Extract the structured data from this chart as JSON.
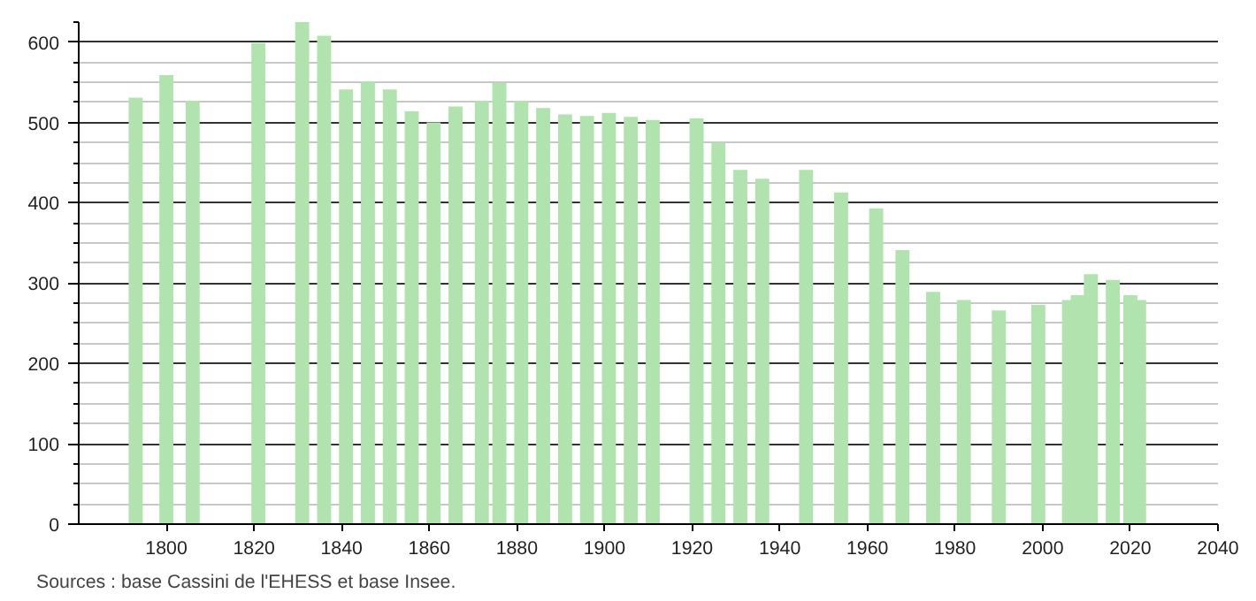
{
  "chart_data": {
    "type": "bar",
    "x": [
      1793,
      1800,
      1806,
      1821,
      1831,
      1836,
      1841,
      1846,
      1851,
      1856,
      1861,
      1866,
      1872,
      1876,
      1881,
      1886,
      1891,
      1896,
      1901,
      1906,
      1911,
      1921,
      1926,
      1931,
      1936,
      1946,
      1954,
      1962,
      1968,
      1975,
      1982,
      1990,
      1999,
      2006,
      2008,
      2011,
      2016,
      2020,
      2022
    ],
    "values": [
      531,
      559,
      527,
      599,
      625,
      608,
      541,
      551,
      541,
      514,
      500,
      520,
      527,
      549,
      527,
      518,
      510,
      508,
      512,
      507,
      503,
      505,
      475,
      441,
      430,
      441,
      413,
      393,
      341,
      289,
      279,
      266,
      273,
      279,
      285,
      311,
      304,
      285,
      279
    ],
    "color": "#b0e3ad",
    "xlim": [
      1780,
      2040
    ],
    "xticks": [
      1800,
      1820,
      1840,
      1860,
      1880,
      1900,
      1920,
      1940,
      1960,
      1980,
      2000,
      2020,
      2040
    ],
    "ylim": [
      0,
      625
    ],
    "yticks": [
      0,
      100,
      200,
      300,
      400,
      500,
      600
    ],
    "grid": "y",
    "annotations": [
      "Sources : base Cassini de l'EHESS et base Insee."
    ]
  }
}
